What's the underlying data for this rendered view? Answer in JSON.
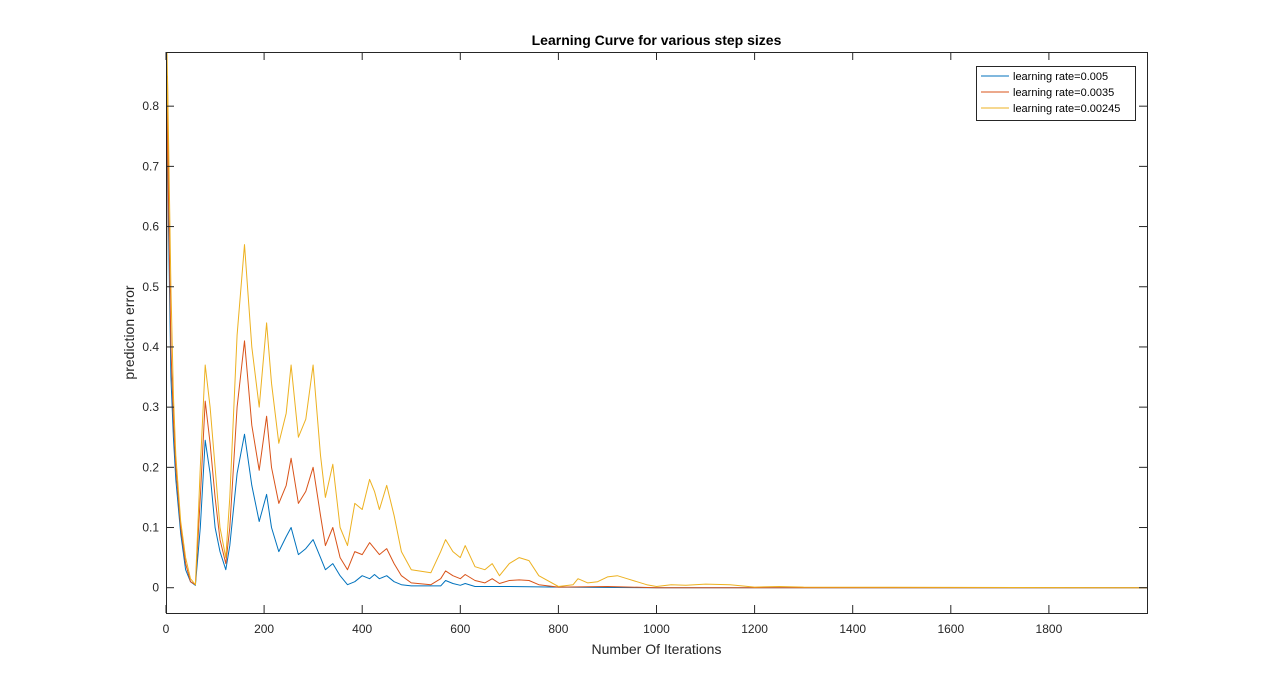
{
  "chart_data": {
    "type": "line",
    "title": "Learning Curve for various step sizes",
    "xlabel": "Number Of Iterations",
    "ylabel": "prediction error",
    "xlim": [
      0,
      2000
    ],
    "ylim": [
      -0.042,
      0.89
    ],
    "xticks": [
      0,
      200,
      400,
      600,
      800,
      1000,
      1200,
      1400,
      1600,
      1800
    ],
    "yticks": [
      0,
      0.1,
      0.2,
      0.3,
      0.4,
      0.5,
      0.6,
      0.7,
      0.8
    ],
    "grid": false,
    "legend_position": "top-right",
    "series": [
      {
        "name": "learning rate=0.005",
        "color": "#0072BD",
        "points": [
          [
            0,
            0.3
          ],
          [
            3,
            0.82
          ],
          [
            5,
            0.6
          ],
          [
            10,
            0.35
          ],
          [
            15,
            0.25
          ],
          [
            20,
            0.18
          ],
          [
            30,
            0.09
          ],
          [
            40,
            0.03
          ],
          [
            50,
            0.01
          ],
          [
            60,
            0.004
          ],
          [
            70,
            0.1
          ],
          [
            80,
            0.245
          ],
          [
            90,
            0.19
          ],
          [
            100,
            0.1
          ],
          [
            110,
            0.06
          ],
          [
            122,
            0.03
          ],
          [
            130,
            0.07
          ],
          [
            145,
            0.19
          ],
          [
            160,
            0.255
          ],
          [
            175,
            0.17
          ],
          [
            190,
            0.11
          ],
          [
            205,
            0.155
          ],
          [
            215,
            0.1
          ],
          [
            230,
            0.06
          ],
          [
            245,
            0.085
          ],
          [
            255,
            0.1
          ],
          [
            270,
            0.055
          ],
          [
            285,
            0.065
          ],
          [
            300,
            0.08
          ],
          [
            315,
            0.05
          ],
          [
            325,
            0.03
          ],
          [
            340,
            0.04
          ],
          [
            355,
            0.02
          ],
          [
            370,
            0.005
          ],
          [
            385,
            0.01
          ],
          [
            400,
            0.02
          ],
          [
            415,
            0.015
          ],
          [
            425,
            0.022
          ],
          [
            435,
            0.015
          ],
          [
            450,
            0.02
          ],
          [
            465,
            0.01
          ],
          [
            480,
            0.005
          ],
          [
            500,
            0.003
          ],
          [
            560,
            0.003
          ],
          [
            570,
            0.012
          ],
          [
            585,
            0.007
          ],
          [
            600,
            0.004
          ],
          [
            610,
            0.007
          ],
          [
            630,
            0.002
          ],
          [
            700,
            0.002
          ],
          [
            800,
            0.001
          ],
          [
            1000,
            0
          ],
          [
            2000,
            0
          ]
        ]
      },
      {
        "name": "learning rate=0.0035",
        "color": "#D95319",
        "points": [
          [
            0,
            0.35
          ],
          [
            3,
            0.85
          ],
          [
            5,
            0.65
          ],
          [
            10,
            0.4
          ],
          [
            15,
            0.28
          ],
          [
            20,
            0.2
          ],
          [
            30,
            0.1
          ],
          [
            40,
            0.04
          ],
          [
            50,
            0.01
          ],
          [
            60,
            0.005
          ],
          [
            70,
            0.15
          ],
          [
            80,
            0.31
          ],
          [
            90,
            0.24
          ],
          [
            100,
            0.15
          ],
          [
            110,
            0.08
          ],
          [
            122,
            0.04
          ],
          [
            130,
            0.1
          ],
          [
            145,
            0.3
          ],
          [
            160,
            0.41
          ],
          [
            175,
            0.27
          ],
          [
            190,
            0.195
          ],
          [
            205,
            0.285
          ],
          [
            215,
            0.2
          ],
          [
            230,
            0.14
          ],
          [
            245,
            0.17
          ],
          [
            255,
            0.215
          ],
          [
            270,
            0.14
          ],
          [
            285,
            0.16
          ],
          [
            300,
            0.2
          ],
          [
            315,
            0.12
          ],
          [
            325,
            0.07
          ],
          [
            340,
            0.1
          ],
          [
            355,
            0.05
          ],
          [
            370,
            0.03
          ],
          [
            385,
            0.06
          ],
          [
            400,
            0.055
          ],
          [
            415,
            0.075
          ],
          [
            425,
            0.065
          ],
          [
            435,
            0.055
          ],
          [
            450,
            0.065
          ],
          [
            465,
            0.04
          ],
          [
            480,
            0.02
          ],
          [
            500,
            0.008
          ],
          [
            540,
            0.005
          ],
          [
            560,
            0.015
          ],
          [
            570,
            0.028
          ],
          [
            585,
            0.02
          ],
          [
            600,
            0.015
          ],
          [
            610,
            0.022
          ],
          [
            630,
            0.012
          ],
          [
            650,
            0.008
          ],
          [
            665,
            0.015
          ],
          [
            680,
            0.007
          ],
          [
            700,
            0.012
          ],
          [
            720,
            0.013
          ],
          [
            740,
            0.012
          ],
          [
            760,
            0.005
          ],
          [
            800,
            0.001
          ],
          [
            900,
            0.002
          ],
          [
            1000,
            0
          ],
          [
            2000,
            0
          ]
        ]
      },
      {
        "name": "learning rate=0.00245",
        "color": "#EDB120",
        "points": [
          [
            0,
            0.4
          ],
          [
            2,
            0.89
          ],
          [
            5,
            0.75
          ],
          [
            10,
            0.5
          ],
          [
            15,
            0.32
          ],
          [
            20,
            0.22
          ],
          [
            30,
            0.11
          ],
          [
            40,
            0.05
          ],
          [
            50,
            0.015
          ],
          [
            60,
            0.005
          ],
          [
            70,
            0.2
          ],
          [
            80,
            0.37
          ],
          [
            90,
            0.3
          ],
          [
            100,
            0.2
          ],
          [
            110,
            0.1
          ],
          [
            122,
            0.05
          ],
          [
            130,
            0.15
          ],
          [
            145,
            0.42
          ],
          [
            160,
            0.57
          ],
          [
            175,
            0.4
          ],
          [
            190,
            0.3
          ],
          [
            205,
            0.44
          ],
          [
            215,
            0.34
          ],
          [
            230,
            0.24
          ],
          [
            245,
            0.29
          ],
          [
            255,
            0.37
          ],
          [
            270,
            0.25
          ],
          [
            285,
            0.28
          ],
          [
            300,
            0.37
          ],
          [
            315,
            0.22
          ],
          [
            325,
            0.15
          ],
          [
            340,
            0.205
          ],
          [
            355,
            0.1
          ],
          [
            370,
            0.07
          ],
          [
            385,
            0.14
          ],
          [
            400,
            0.13
          ],
          [
            415,
            0.18
          ],
          [
            425,
            0.16
          ],
          [
            435,
            0.13
          ],
          [
            450,
            0.17
          ],
          [
            465,
            0.12
          ],
          [
            480,
            0.06
          ],
          [
            500,
            0.03
          ],
          [
            540,
            0.025
          ],
          [
            560,
            0.06
          ],
          [
            570,
            0.08
          ],
          [
            585,
            0.06
          ],
          [
            600,
            0.05
          ],
          [
            610,
            0.07
          ],
          [
            630,
            0.035
          ],
          [
            650,
            0.03
          ],
          [
            665,
            0.04
          ],
          [
            680,
            0.02
          ],
          [
            700,
            0.04
          ],
          [
            720,
            0.05
          ],
          [
            740,
            0.045
          ],
          [
            760,
            0.02
          ],
          [
            800,
            0.002
          ],
          [
            830,
            0.005
          ],
          [
            840,
            0.015
          ],
          [
            860,
            0.008
          ],
          [
            880,
            0.01
          ],
          [
            900,
            0.018
          ],
          [
            920,
            0.02
          ],
          [
            940,
            0.015
          ],
          [
            960,
            0.01
          ],
          [
            980,
            0.005
          ],
          [
            1000,
            0.002
          ],
          [
            1030,
            0.005
          ],
          [
            1060,
            0.004
          ],
          [
            1100,
            0.006
          ],
          [
            1150,
            0.005
          ],
          [
            1200,
            0.001
          ],
          [
            1250,
            0.002
          ],
          [
            1300,
            0.001
          ],
          [
            2000,
            0
          ]
        ]
      }
    ]
  }
}
